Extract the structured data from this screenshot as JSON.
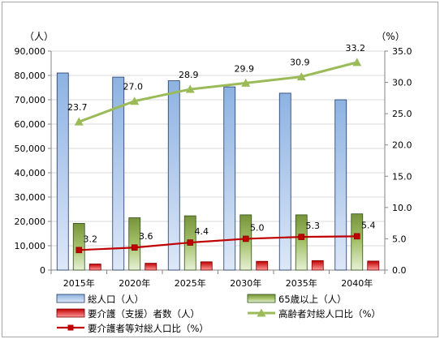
{
  "chart_data": {
    "type": "bar",
    "categories": [
      "2015年",
      "2020年",
      "2025年",
      "2030年",
      "2035年",
      "2040年"
    ],
    "left_axis_unit": "（人）",
    "right_axis_unit": "（%）",
    "ylim_left": [
      0,
      90000
    ],
    "ylim_right": [
      0,
      35
    ],
    "left_ticks": [
      "0",
      "10,000",
      "20,000",
      "30,000",
      "40,000",
      "50,000",
      "60,000",
      "70,000",
      "80,000",
      "90,000"
    ],
    "right_ticks": [
      "0.0",
      "5.0",
      "10.0",
      "15.0",
      "20.0",
      "25.0",
      "30.0",
      "35.0"
    ],
    "grid": true,
    "legend_position": "bottom",
    "series": [
      {
        "name": "総人口（人）",
        "axis": "left",
        "kind": "bar",
        "color": "#8eb4e3",
        "values": [
          81000,
          79300,
          77800,
          75300,
          72700,
          70000
        ]
      },
      {
        "name": "65歳以上（人）",
        "axis": "left",
        "kind": "bar",
        "color": "#77933c",
        "values": [
          19200,
          21500,
          22300,
          22700,
          22700,
          23100
        ]
      },
      {
        "name": "要介護（支援）者数（人）",
        "axis": "left",
        "kind": "bar",
        "color": "#c00000",
        "values": [
          2500,
          2800,
          3400,
          3600,
          3900,
          3700
        ]
      },
      {
        "name": "高齢者対総人口比（%）",
        "axis": "right",
        "kind": "line",
        "color": "#9bbb59",
        "values": [
          23.7,
          27.0,
          28.9,
          29.9,
          30.9,
          33.2
        ]
      },
      {
        "name": "要介護者等対総人口比（%）",
        "axis": "right",
        "kind": "line",
        "color": "#c00000",
        "values": [
          3.2,
          3.6,
          4.4,
          5.0,
          5.3,
          5.4
        ]
      }
    ],
    "data_labels": {
      "elderly_ratio": [
        "23.7",
        "27.0",
        "28.9",
        "29.9",
        "30.9",
        "33.2"
      ],
      "care_ratio": [
        "3.2",
        "3.6",
        "4.4",
        "5.0",
        "5.3",
        "5.4"
      ]
    }
  }
}
